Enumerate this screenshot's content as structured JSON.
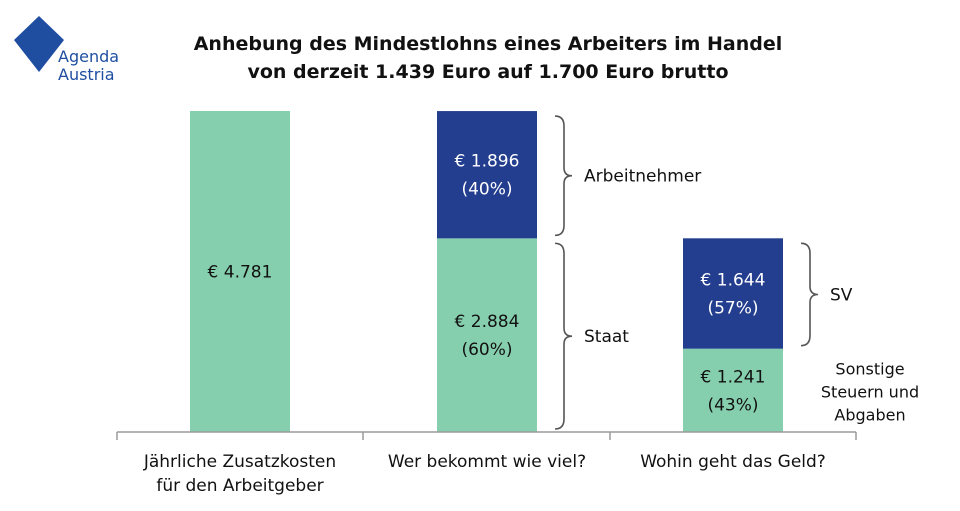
{
  "logo": {
    "line1": "Agenda",
    "line2": "Austria",
    "color": "#1f4ea1"
  },
  "chart_data": {
    "type": "bar",
    "stacked": true,
    "title_lines": [
      "Anhebung des Mindestlohns eines Arbeiters im Handel",
      "von derzeit 1.439 Euro auf 1.700 Euro brutto"
    ],
    "categories": [
      [
        "Jährliche Zusatzkosten",
        "für den Arbeitgeber"
      ],
      [
        "Wer bekommt wie viel?"
      ],
      [
        "Wohin geht das Geld?"
      ]
    ],
    "bars": [
      {
        "segments": [
          {
            "value": 4781,
            "lines": [
              "€ 4.781"
            ],
            "color": "#86cfae",
            "text_color": "#111111"
          }
        ]
      },
      {
        "segments": [
          {
            "value": 2884,
            "lines": [
              "€ 2.884",
              "(60%)"
            ],
            "color": "#86cfae",
            "text_color": "#111111",
            "brace": [
              "Staat"
            ]
          },
          {
            "value": 1896,
            "lines": [
              "€ 1.896",
              "(40%)"
            ],
            "color": "#243e8f",
            "text_color": "#ffffff",
            "brace": [
              "Arbeitnehmer"
            ]
          }
        ]
      },
      {
        "segments": [
          {
            "value": 1241,
            "lines": [
              "€ 1.241",
              "(43%)"
            ],
            "color": "#86cfae",
            "text_color": "#111111",
            "side_label": [
              "Sonstige",
              "Steuern und",
              "Abgaben"
            ]
          },
          {
            "value": 1644,
            "lines": [
              "€ 1.644",
              "(57%)"
            ],
            "color": "#243e8f",
            "text_color": "#ffffff",
            "brace": [
              "SV"
            ]
          }
        ]
      }
    ],
    "ylim": [
      0,
      4781
    ],
    "grid": false,
    "legend": "none",
    "colors": {
      "green": "#86cfae",
      "navy": "#243e8f",
      "axis": "#9a9a9a",
      "brace": "#555555"
    }
  }
}
